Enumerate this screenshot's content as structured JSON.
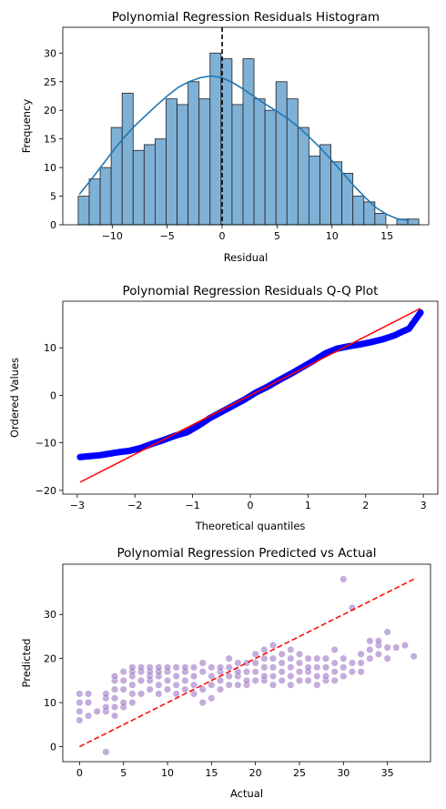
{
  "chart_data": [
    {
      "type": "histogram",
      "title": "Polynomial Regression Residuals Histogram",
      "xlabel": "Residual",
      "ylabel": "Frequency",
      "xlim": [
        -14.5,
        18.8
      ],
      "ylim": [
        0,
        34.5
      ],
      "xticks": [
        -10,
        -5,
        0,
        5,
        10,
        15
      ],
      "xtick_labels": [
        "−10",
        "−5",
        "0",
        "5",
        "10",
        "15"
      ],
      "yticks": [
        0,
        5,
        10,
        15,
        20,
        25,
        30
      ],
      "bin_start": -13.1,
      "bin_width": 1.0,
      "counts": [
        5,
        8,
        10,
        17,
        23,
        13,
        14,
        15,
        22,
        21,
        25,
        22,
        30,
        29,
        21,
        29,
        22,
        20,
        25,
        22,
        17,
        12,
        14,
        11,
        9,
        5,
        4,
        2,
        0,
        1,
        1
      ],
      "kde": {
        "x": [
          -13,
          -12,
          -11,
          -10,
          -9,
          -8,
          -7,
          -6,
          -5,
          -4,
          -3,
          -2,
          -1,
          0,
          1,
          2,
          3,
          4,
          5,
          6,
          7,
          8,
          9,
          10,
          11,
          12,
          13,
          14,
          15,
          16,
          17
        ],
        "y": [
          5.3,
          7.7,
          10.2,
          12.7,
          15.1,
          17.2,
          19.0,
          20.8,
          22.5,
          24.0,
          25.0,
          25.7,
          26.0,
          25.7,
          24.8,
          23.6,
          22.3,
          21.0,
          19.8,
          18.5,
          17.0,
          15.2,
          13.3,
          11.2,
          9.0,
          6.8,
          4.8,
          3.0,
          1.8,
          1.0,
          0.8
        ]
      },
      "vline": 0,
      "colors": {
        "bar_fill": "#7fb0d6",
        "bar_edge": "#222222",
        "kde": "#1f77b4",
        "vline": "#000000"
      }
    },
    {
      "type": "scatter",
      "title": "Polynomial Regression Residuals Q-Q Plot",
      "xlabel": "Theoretical quantiles",
      "ylabel": "Ordered Values",
      "xlim": [
        -3.25,
        3.25
      ],
      "ylim": [
        -20.8,
        19.8
      ],
      "xticks": [
        -3,
        -2,
        -1,
        0,
        1,
        2,
        3
      ],
      "xtick_labels": [
        "−3",
        "−2",
        "−1",
        "0",
        "1",
        "2",
        "3"
      ],
      "yticks": [
        -20,
        -10,
        0,
        10
      ],
      "ytick_labels": [
        "−20",
        "−10",
        "0",
        "10"
      ],
      "quantile_curve": {
        "x": [
          -2.95,
          -2.6,
          -2.45,
          -2.3,
          -2.1,
          -1.9,
          -1.7,
          -1.5,
          -1.3,
          -1.1,
          -0.9,
          -0.7,
          -0.5,
          -0.3,
          -0.1,
          0.1,
          0.3,
          0.5,
          0.7,
          0.9,
          1.1,
          1.3,
          1.5,
          1.7,
          1.9,
          2.1,
          2.3,
          2.5,
          2.6,
          2.75,
          2.95
        ],
        "y": [
          -13.0,
          -12.6,
          -12.3,
          -12.0,
          -11.7,
          -11.1,
          -10.2,
          -9.4,
          -8.5,
          -7.8,
          -6.4,
          -4.8,
          -3.5,
          -2.2,
          -0.9,
          0.6,
          1.8,
          3.2,
          4.5,
          5.9,
          7.3,
          8.8,
          9.8,
          10.3,
          10.7,
          11.2,
          11.8,
          12.6,
          13.2,
          14.0,
          17.4
        ]
      },
      "fit_line": {
        "slope": 6.2,
        "intercept": 0.0,
        "x_range": [
          -2.95,
          2.95
        ]
      },
      "colors": {
        "points": "#0000ff",
        "fit": "#ff0000"
      }
    },
    {
      "type": "scatter",
      "title": "Polynomial Regression Predicted vs Actual",
      "xlabel": "Actual",
      "ylabel": "Predicted",
      "xlim": [
        -1.9,
        39.9
      ],
      "ylim": [
        -3.4,
        41.4
      ],
      "xticks": [
        0,
        5,
        10,
        15,
        20,
        25,
        30,
        35
      ],
      "yticks": [
        0,
        10,
        20,
        30
      ],
      "identity_line": [
        0,
        38
      ],
      "points": [
        [
          0,
          6
        ],
        [
          0,
          8
        ],
        [
          0,
          10
        ],
        [
          0,
          12
        ],
        [
          1,
          7
        ],
        [
          1,
          10
        ],
        [
          1,
          12
        ],
        [
          2,
          8
        ],
        [
          3,
          -1.2
        ],
        [
          3,
          8
        ],
        [
          3,
          9
        ],
        [
          3,
          11
        ],
        [
          3,
          12
        ],
        [
          4,
          7
        ],
        [
          4,
          9
        ],
        [
          4,
          11
        ],
        [
          4,
          13
        ],
        [
          4,
          15
        ],
        [
          4,
          16
        ],
        [
          5,
          9
        ],
        [
          5,
          10
        ],
        [
          5,
          13
        ],
        [
          5,
          15
        ],
        [
          5,
          17
        ],
        [
          6,
          10
        ],
        [
          6,
          12
        ],
        [
          6,
          14
        ],
        [
          6,
          16
        ],
        [
          6,
          17
        ],
        [
          6,
          18
        ],
        [
          7,
          12
        ],
        [
          7,
          15
        ],
        [
          7,
          17
        ],
        [
          7,
          18
        ],
        [
          8,
          13
        ],
        [
          8,
          15
        ],
        [
          8,
          16
        ],
        [
          8,
          17
        ],
        [
          8,
          18
        ],
        [
          9,
          12
        ],
        [
          9,
          14
        ],
        [
          9,
          16
        ],
        [
          9,
          17
        ],
        [
          9,
          18
        ],
        [
          10,
          13
        ],
        [
          10,
          15
        ],
        [
          10,
          17
        ],
        [
          10,
          18
        ],
        [
          11,
          12
        ],
        [
          11,
          14
        ],
        [
          11,
          16
        ],
        [
          11,
          18
        ],
        [
          12,
          13
        ],
        [
          12,
          15
        ],
        [
          12,
          17
        ],
        [
          12,
          18
        ],
        [
          13,
          12
        ],
        [
          13,
          14
        ],
        [
          13,
          16
        ],
        [
          13,
          18
        ],
        [
          14,
          10
        ],
        [
          14,
          13
        ],
        [
          14,
          17
        ],
        [
          14,
          19
        ],
        [
          15,
          11
        ],
        [
          15,
          14
        ],
        [
          15,
          16
        ],
        [
          15,
          18
        ],
        [
          16,
          13
        ],
        [
          16,
          15
        ],
        [
          16,
          17
        ],
        [
          16,
          18
        ],
        [
          17,
          14
        ],
        [
          17,
          16
        ],
        [
          17,
          18
        ],
        [
          17,
          20
        ],
        [
          18,
          14
        ],
        [
          18,
          16
        ],
        [
          18,
          17
        ],
        [
          18,
          19
        ],
        [
          19,
          14
        ],
        [
          19,
          15
        ],
        [
          19,
          17
        ],
        [
          19,
          19
        ],
        [
          20,
          15
        ],
        [
          20,
          17
        ],
        [
          20,
          19
        ],
        [
          20,
          21
        ],
        [
          21,
          15
        ],
        [
          21,
          16
        ],
        [
          21,
          18
        ],
        [
          21,
          20
        ],
        [
          21,
          22
        ],
        [
          22,
          14
        ],
        [
          22,
          16
        ],
        [
          22,
          18
        ],
        [
          22,
          20
        ],
        [
          22,
          23
        ],
        [
          23,
          15
        ],
        [
          23,
          17
        ],
        [
          23,
          19
        ],
        [
          23,
          21
        ],
        [
          24,
          14
        ],
        [
          24,
          16
        ],
        [
          24,
          18
        ],
        [
          24,
          20
        ],
        [
          24,
          22
        ],
        [
          25,
          15
        ],
        [
          25,
          17
        ],
        [
          25,
          19
        ],
        [
          25,
          21
        ],
        [
          26,
          15
        ],
        [
          26,
          17
        ],
        [
          26,
          18
        ],
        [
          26,
          20
        ],
        [
          27,
          14
        ],
        [
          27,
          16
        ],
        [
          27,
          18
        ],
        [
          27,
          20
        ],
        [
          28,
          15
        ],
        [
          28,
          16
        ],
        [
          28,
          18
        ],
        [
          28,
          20
        ],
        [
          29,
          15
        ],
        [
          29,
          17
        ],
        [
          29,
          19
        ],
        [
          29,
          22
        ],
        [
          30,
          16
        ],
        [
          30,
          18
        ],
        [
          30,
          20
        ],
        [
          30,
          38
        ],
        [
          31,
          17
        ],
        [
          31,
          19
        ],
        [
          31,
          31.5
        ],
        [
          32,
          17
        ],
        [
          32,
          19
        ],
        [
          32,
          21
        ],
        [
          33,
          20
        ],
        [
          33,
          22
        ],
        [
          33,
          24
        ],
        [
          34,
          21
        ],
        [
          34,
          23
        ],
        [
          34,
          24
        ],
        [
          35,
          20
        ],
        [
          35,
          22.5
        ],
        [
          35,
          26
        ],
        [
          36,
          22.5
        ],
        [
          37,
          23
        ],
        [
          38,
          20.5
        ]
      ],
      "colors": {
        "points": "#9467bd",
        "identity": "#ff0000"
      }
    }
  ]
}
